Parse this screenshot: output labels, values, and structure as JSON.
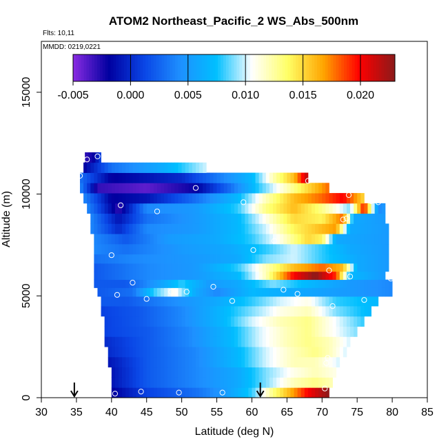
{
  "chart_data": {
    "type": "heatmap",
    "title": "ATOM2 Northeast_Pacific_2 WS_Abs_500nm",
    "flights_label": "Flts: 10,11",
    "dates_label": "MMDD: 0219,0221",
    "xlabel": "Latitude (deg N)",
    "ylabel": "Altitude (m)",
    "xlim": [
      30,
      85
    ],
    "ylim": [
      0,
      17500
    ],
    "x_ticks": [
      "30",
      "35",
      "40",
      "45",
      "50",
      "55",
      "60",
      "65",
      "70",
      "75",
      "80",
      "85"
    ],
    "y_ticks": [
      "0",
      "5000",
      "10000",
      "15000"
    ],
    "colorbar": {
      "range": [
        -0.005,
        0.023
      ],
      "ticks": [
        "-0.005",
        "0.000",
        "0.005",
        "0.010",
        "0.015",
        "0.020"
      ],
      "colors": [
        "#8a2be2",
        "#0000a0",
        "#0a46e6",
        "#1e90ff",
        "#00bfff",
        "#ffffff",
        "#ffff66",
        "#ffa500",
        "#ff0000",
        "#8b1a1a"
      ]
    },
    "arrows_at_latitude": [
      34.7,
      61.2
    ],
    "field_rows": [
      {
        "alt": 11800,
        "lat_start": 36.2,
        "lat_end": 38.5,
        "stops": [
          [
            36.2,
            -0.003
          ],
          [
            37.5,
            -0.002
          ],
          [
            38.5,
            0.001
          ]
        ]
      },
      {
        "alt": 11300,
        "lat_start": 36.0,
        "lat_end": 53.5,
        "stops": [
          [
            36.0,
            -0.002
          ],
          [
            40.0,
            0.003
          ],
          [
            47.0,
            0.006
          ],
          [
            53.5,
            0.01
          ]
        ]
      },
      {
        "alt": 10800,
        "lat_start": 35.5,
        "lat_end": 68.0,
        "stops": [
          [
            35.5,
            0.003
          ],
          [
            40.0,
            -0.002
          ],
          [
            50.0,
            0.0
          ],
          [
            56.0,
            0.004
          ],
          [
            60.0,
            0.007
          ],
          [
            63.0,
            0.012
          ],
          [
            66.0,
            0.016
          ],
          [
            68.0,
            0.022
          ]
        ]
      },
      {
        "alt": 10300,
        "lat_start": 35.5,
        "lat_end": 71.0,
        "stops": [
          [
            35.5,
            0.004
          ],
          [
            38.0,
            -0.003
          ],
          [
            45.0,
            -0.004
          ],
          [
            52.0,
            -0.002
          ],
          [
            57.0,
            0.003
          ],
          [
            61.0,
            0.008
          ],
          [
            65.0,
            0.012
          ],
          [
            68.0,
            0.015
          ],
          [
            71.0,
            0.018
          ]
        ]
      },
      {
        "alt": 9800,
        "lat_start": 36.0,
        "lat_end": 76.0,
        "stops": [
          [
            36.0,
            0.004
          ],
          [
            40.0,
            -0.002
          ],
          [
            45.0,
            -0.001
          ],
          [
            52.0,
            0.003
          ],
          [
            58.0,
            0.007
          ],
          [
            62.0,
            0.012
          ],
          [
            66.0,
            0.016
          ],
          [
            70.0,
            0.018
          ],
          [
            73.0,
            0.02
          ],
          [
            76.0,
            0.015
          ]
        ]
      },
      {
        "alt": 9300,
        "lat_start": 36.5,
        "lat_end": 79.0,
        "stops": [
          [
            36.5,
            0.004
          ],
          [
            41.0,
            -0.003
          ],
          [
            45.0,
            0.004
          ],
          [
            52.0,
            0.005
          ],
          [
            58.0,
            0.008
          ],
          [
            62.0,
            0.013
          ],
          [
            66.0,
            0.016
          ],
          [
            70.0,
            0.013
          ],
          [
            74.0,
            0.009
          ],
          [
            76.0,
            0.02
          ],
          [
            78.0,
            0.004
          ],
          [
            79.0,
            0.005
          ]
        ]
      },
      {
        "alt": 8800,
        "lat_start": 37.0,
        "lat_end": 79.0,
        "stops": [
          [
            37.0,
            0.004
          ],
          [
            41.0,
            -0.001
          ],
          [
            45.0,
            0.003
          ],
          [
            52.0,
            0.005
          ],
          [
            58.0,
            0.007
          ],
          [
            62.0,
            0.011
          ],
          [
            66.0,
            0.015
          ],
          [
            70.0,
            0.014
          ],
          [
            73.0,
            0.018
          ],
          [
            74.5,
            0.006
          ],
          [
            79.0,
            0.005
          ]
        ]
      },
      {
        "alt": 8300,
        "lat_start": 37.0,
        "lat_end": 79.5,
        "stops": [
          [
            37.0,
            0.004
          ],
          [
            41.0,
            0.0
          ],
          [
            45.0,
            0.004
          ],
          [
            52.0,
            0.005
          ],
          [
            58.0,
            0.007
          ],
          [
            62.0,
            0.01
          ],
          [
            66.0,
            0.014
          ],
          [
            70.0,
            0.016
          ],
          [
            72.0,
            0.017
          ],
          [
            74.0,
            0.006
          ],
          [
            79.5,
            0.005
          ]
        ]
      },
      {
        "alt": 7800,
        "lat_start": 37.5,
        "lat_end": 79.5,
        "stops": [
          [
            37.5,
            0.004
          ],
          [
            42.0,
            0.002
          ],
          [
            48.0,
            0.005
          ],
          [
            55.0,
            0.006
          ],
          [
            60.0,
            0.008
          ],
          [
            64.0,
            0.011
          ],
          [
            68.0,
            0.015
          ],
          [
            70.0,
            0.014
          ],
          [
            72.0,
            0.006
          ],
          [
            79.5,
            0.005
          ]
        ]
      },
      {
        "alt": 7300,
        "lat_start": 37.5,
        "lat_end": 79.5,
        "stops": [
          [
            37.5,
            0.004
          ],
          [
            42.0,
            0.003
          ],
          [
            50.0,
            0.005
          ],
          [
            57.0,
            0.006
          ],
          [
            62.0,
            0.008
          ],
          [
            66.0,
            0.01
          ],
          [
            70.0,
            0.008
          ],
          [
            74.0,
            0.006
          ],
          [
            79.5,
            0.005
          ]
        ]
      },
      {
        "alt": 6800,
        "lat_start": 37.5,
        "lat_end": 79.5,
        "stops": [
          [
            37.5,
            0.003
          ],
          [
            43.0,
            0.004
          ],
          [
            52.0,
            0.005
          ],
          [
            58.0,
            0.006
          ],
          [
            62.0,
            0.009
          ],
          [
            66.0,
            0.01
          ],
          [
            70.0,
            0.008
          ],
          [
            75.0,
            0.006
          ],
          [
            79.5,
            0.005
          ]
        ]
      },
      {
        "alt": 6400,
        "lat_start": 37.5,
        "lat_end": 79.5,
        "stops": [
          [
            37.5,
            0.002
          ],
          [
            45.0,
            0.004
          ],
          [
            52.0,
            0.005
          ],
          [
            58.0,
            0.008
          ],
          [
            62.0,
            0.012
          ],
          [
            66.0,
            0.016
          ],
          [
            70.0,
            0.018
          ],
          [
            73.0,
            0.016
          ],
          [
            75.0,
            0.006
          ],
          [
            79.5,
            0.005
          ]
        ]
      },
      {
        "alt": 6000,
        "lat_start": 37.5,
        "lat_end": 79.0,
        "stops": [
          [
            37.5,
            0.002
          ],
          [
            45.0,
            0.004
          ],
          [
            52.0,
            0.005
          ],
          [
            58.0,
            0.007
          ],
          [
            62.0,
            0.012
          ],
          [
            66.0,
            0.02
          ],
          [
            69.0,
            0.023
          ],
          [
            72.0,
            0.019
          ],
          [
            74.0,
            0.007
          ],
          [
            79.0,
            0.005
          ]
        ]
      },
      {
        "alt": 5600,
        "lat_start": 37.5,
        "lat_end": 80.0,
        "stops": [
          [
            37.5,
            0.002
          ],
          [
            42.0,
            0.002
          ],
          [
            45.0,
            0.004
          ],
          [
            50.0,
            0.008
          ],
          [
            54.0,
            0.005
          ],
          [
            58.0,
            0.006
          ],
          [
            63.0,
            0.009
          ],
          [
            68.0,
            0.007
          ],
          [
            74.0,
            0.005
          ],
          [
            80.0,
            0.004
          ]
        ]
      },
      {
        "alt": 5200,
        "lat_start": 38.0,
        "lat_end": 80.0,
        "stops": [
          [
            38.0,
            0.002
          ],
          [
            43.0,
            0.003
          ],
          [
            46.0,
            0.008
          ],
          [
            49.0,
            0.011
          ],
          [
            52.0,
            0.006
          ],
          [
            55.0,
            0.004
          ],
          [
            60.0,
            0.007
          ],
          [
            66.0,
            0.006
          ],
          [
            74.0,
            0.005
          ],
          [
            80.0,
            0.004
          ]
        ]
      },
      {
        "alt": 4750,
        "lat_start": 38.5,
        "lat_end": 78.0,
        "stops": [
          [
            38.5,
            0.002
          ],
          [
            42.0,
            0.002
          ],
          [
            48.0,
            0.004
          ],
          [
            55.0,
            0.006
          ],
          [
            60.0,
            0.008
          ],
          [
            64.0,
            0.01
          ],
          [
            68.0,
            0.011
          ],
          [
            72.0,
            0.008
          ],
          [
            78.0,
            0.007
          ]
        ]
      },
      {
        "alt": 4250,
        "lat_start": 38.5,
        "lat_end": 77.0,
        "stops": [
          [
            38.5,
            0.001
          ],
          [
            44.0,
            0.002
          ],
          [
            50.0,
            0.004
          ],
          [
            56.0,
            0.007
          ],
          [
            60.0,
            0.009
          ],
          [
            64.0,
            0.011
          ],
          [
            68.0,
            0.012
          ],
          [
            72.0,
            0.009
          ],
          [
            77.0,
            0.007
          ]
        ]
      },
      {
        "alt": 3750,
        "lat_start": 39.0,
        "lat_end": 76.0,
        "stops": [
          [
            39.0,
            0.001
          ],
          [
            44.0,
            0.002
          ],
          [
            50.0,
            0.004
          ],
          [
            56.0,
            0.007
          ],
          [
            60.0,
            0.01
          ],
          [
            64.0,
            0.012
          ],
          [
            68.0,
            0.013
          ],
          [
            71.0,
            0.011
          ],
          [
            76.0,
            0.008
          ]
        ]
      },
      {
        "alt": 3250,
        "lat_start": 39.0,
        "lat_end": 75.0,
        "stops": [
          [
            39.0,
            0.001
          ],
          [
            45.0,
            0.002
          ],
          [
            51.0,
            0.004
          ],
          [
            57.0,
            0.007
          ],
          [
            61.0,
            0.01
          ],
          [
            65.0,
            0.012
          ],
          [
            68.0,
            0.013
          ],
          [
            71.0,
            0.011
          ],
          [
            75.0,
            0.009
          ]
        ]
      },
      {
        "alt": 2750,
        "lat_start": 39.0,
        "lat_end": 74.0,
        "stops": [
          [
            39.0,
            0.0
          ],
          [
            45.0,
            0.002
          ],
          [
            51.0,
            0.004
          ],
          [
            57.0,
            0.007
          ],
          [
            61.0,
            0.01
          ],
          [
            65.0,
            0.012
          ],
          [
            68.0,
            0.013
          ],
          [
            71.0,
            0.012
          ],
          [
            74.0,
            0.01
          ]
        ]
      },
      {
        "alt": 2250,
        "lat_start": 39.5,
        "lat_end": 73.5,
        "stops": [
          [
            39.5,
            0.0
          ],
          [
            45.0,
            0.002
          ],
          [
            52.0,
            0.004
          ],
          [
            58.0,
            0.007
          ],
          [
            62.0,
            0.01
          ],
          [
            66.0,
            0.012
          ],
          [
            69.0,
            0.013
          ],
          [
            71.0,
            0.012
          ],
          [
            73.5,
            0.01
          ]
        ]
      },
      {
        "alt": 1750,
        "lat_start": 39.5,
        "lat_end": 72.5,
        "stops": [
          [
            39.5,
            -0.001
          ],
          [
            45.0,
            0.002
          ],
          [
            52.0,
            0.004
          ],
          [
            58.0,
            0.007
          ],
          [
            62.0,
            0.01
          ],
          [
            66.0,
            0.012
          ],
          [
            69.0,
            0.012
          ],
          [
            72.5,
            0.01
          ]
        ]
      },
      {
        "alt": 1250,
        "lat_start": 40.0,
        "lat_end": 72.0,
        "stops": [
          [
            40.0,
            -0.001
          ],
          [
            45.0,
            0.002
          ],
          [
            52.0,
            0.004
          ],
          [
            58.0,
            0.006
          ],
          [
            62.0,
            0.009
          ],
          [
            66.0,
            0.011
          ],
          [
            69.0,
            0.012
          ],
          [
            72.0,
            0.011
          ]
        ]
      },
      {
        "alt": 750,
        "lat_start": 40.0,
        "lat_end": 71.5,
        "stops": [
          [
            40.0,
            -0.001
          ],
          [
            45.0,
            0.002
          ],
          [
            52.0,
            0.004
          ],
          [
            58.0,
            0.006
          ],
          [
            62.0,
            0.009
          ],
          [
            66.0,
            0.012
          ],
          [
            69.0,
            0.013
          ],
          [
            71.5,
            0.012
          ]
        ]
      },
      {
        "alt": 250,
        "lat_start": 40.0,
        "lat_end": 71.0,
        "stops": [
          [
            40.0,
            -0.002
          ],
          [
            45.0,
            0.001
          ],
          [
            52.0,
            0.003
          ],
          [
            56.0,
            0.005
          ],
          [
            60.0,
            0.008
          ],
          [
            63.0,
            0.013
          ],
          [
            66.0,
            0.017
          ],
          [
            68.0,
            0.02
          ],
          [
            71.0,
            0.023
          ]
        ]
      }
    ],
    "sample_points": [
      {
        "lat": 36.5,
        "alt": 11700
      },
      {
        "lat": 38.0,
        "alt": 11850
      },
      {
        "lat": 39.0,
        "alt": 11750
      },
      {
        "lat": 35.5,
        "alt": 10900
      },
      {
        "lat": 52.0,
        "alt": 10300
      },
      {
        "lat": 68.0,
        "alt": 10650
      },
      {
        "lat": 73.8,
        "alt": 9950
      },
      {
        "lat": 77.0,
        "alt": 9650
      },
      {
        "lat": 78.0,
        "alt": 9600
      },
      {
        "lat": 58.8,
        "alt": 9600
      },
      {
        "lat": 41.3,
        "alt": 9450
      },
      {
        "lat": 46.5,
        "alt": 9150
      },
      {
        "lat": 73.5,
        "alt": 8800
      },
      {
        "lat": 73.0,
        "alt": 8750
      },
      {
        "lat": 63.2,
        "alt": 7700
      },
      {
        "lat": 60.2,
        "alt": 7250
      },
      {
        "lat": 40.0,
        "alt": 7000
      },
      {
        "lat": 71.0,
        "alt": 6250
      },
      {
        "lat": 74.0,
        "alt": 5950
      },
      {
        "lat": 79.8,
        "alt": 5850
      },
      {
        "lat": 43.0,
        "alt": 5650
      },
      {
        "lat": 54.5,
        "alt": 5450
      },
      {
        "lat": 64.5,
        "alt": 5300
      },
      {
        "lat": 48.5,
        "alt": 5200
      },
      {
        "lat": 50.7,
        "alt": 5200
      },
      {
        "lat": 66.5,
        "alt": 5100
      },
      {
        "lat": 40.8,
        "alt": 5050
      },
      {
        "lat": 45.0,
        "alt": 4850
      },
      {
        "lat": 57.2,
        "alt": 4750
      },
      {
        "lat": 76.0,
        "alt": 4800
      },
      {
        "lat": 71.5,
        "alt": 4500
      },
      {
        "lat": 70.8,
        "alt": 1950
      },
      {
        "lat": 70.6,
        "alt": 1700
      },
      {
        "lat": 44.2,
        "alt": 300
      },
      {
        "lat": 49.6,
        "alt": 250
      },
      {
        "lat": 55.8,
        "alt": 250
      },
      {
        "lat": 70.4,
        "alt": 450
      },
      {
        "lat": 40.5,
        "alt": 200
      }
    ]
  }
}
